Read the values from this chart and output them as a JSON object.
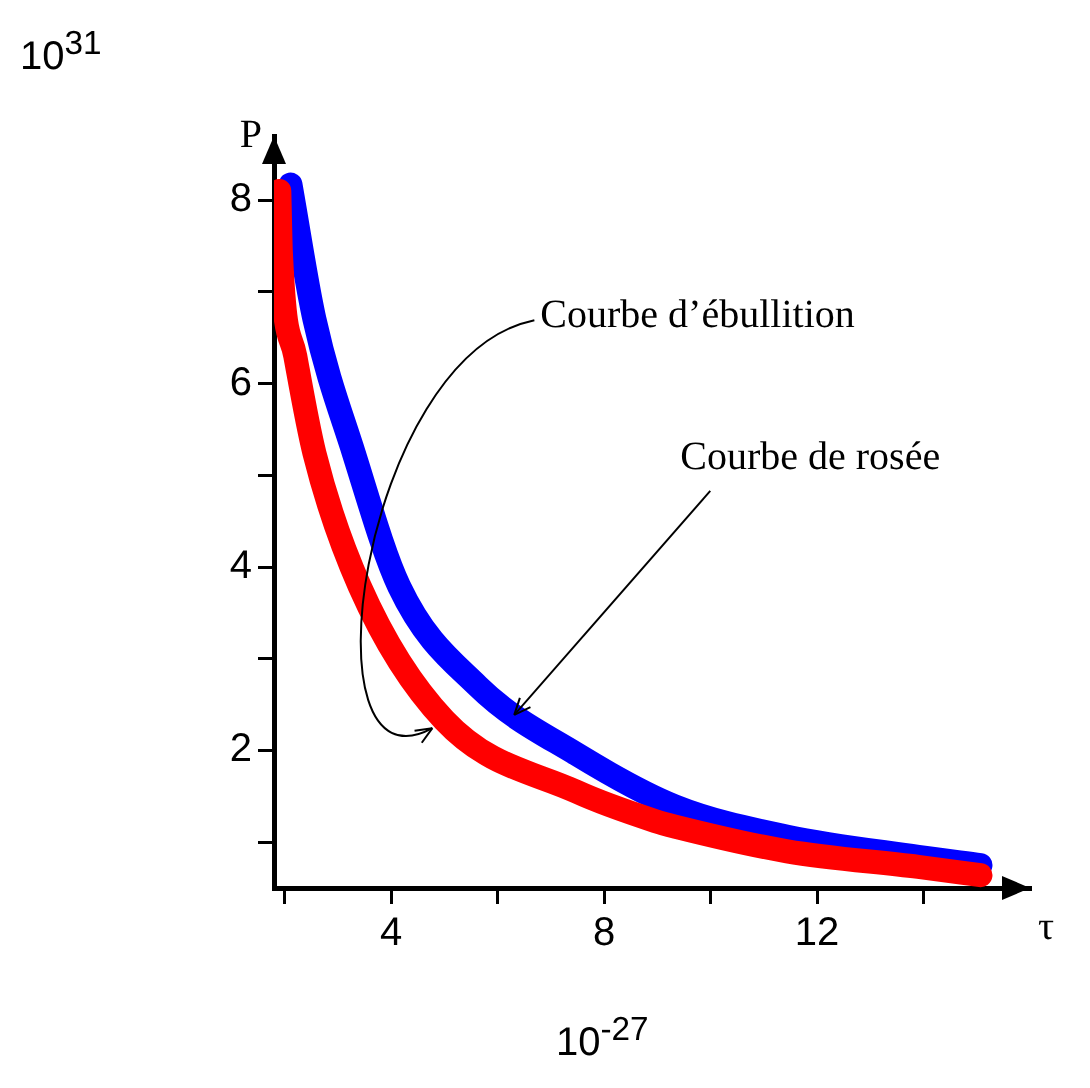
{
  "chart_data": {
    "type": "line",
    "xlabel": "τ",
    "ylabel": "P",
    "xlim": [
      1.8,
      16
    ],
    "ylim": [
      0.5,
      8.7
    ],
    "xticks": [
      {
        "value": 2,
        "label": null
      },
      4,
      {
        "value": 6,
        "label": null
      },
      8,
      {
        "value": 10,
        "label": null
      },
      12,
      {
        "value": 14,
        "label": null
      }
    ],
    "yticks": [
      {
        "value": 1,
        "label": null
      },
      2,
      {
        "value": 3,
        "label": null
      },
      4,
      {
        "value": 5,
        "label": null
      },
      6,
      {
        "value": 7,
        "label": null
      },
      8
    ],
    "grid": false,
    "legend": false,
    "series": [
      {
        "color": "#ff0000",
        "x": [
          1.9,
          1.93,
          2.2,
          2.56,
          3.41,
          5.0,
          7.48,
          8.96,
          9.33,
          11.44,
          13.9,
          15.07
        ],
        "values": [
          8.1,
          7.42,
          6.3,
          5.24,
          3.79,
          2.33,
          1.55,
          1.23,
          1.17,
          0.9,
          0.73,
          0.64
        ]
      },
      {
        "color": "#0000ff",
        "x": [
          2.11,
          2.56,
          3.3,
          4.15,
          5.63,
          7.48,
          9.33,
          11.44,
          13.9,
          15.07
        ],
        "values": [
          8.17,
          6.7,
          5.24,
          3.79,
          2.7,
          1.96,
          1.39,
          1.06,
          0.84,
          0.75
        ]
      }
    ],
    "annotations": [
      "10$^{31}$",
      "10$^{-27}$",
      {
        "text": "Courbe d’ébullition",
        "x": 5.0,
        "y": 2.33
      },
      {
        "text": "Courbe de rosée",
        "x": 6.2,
        "y": 2.3
      }
    ]
  }
}
